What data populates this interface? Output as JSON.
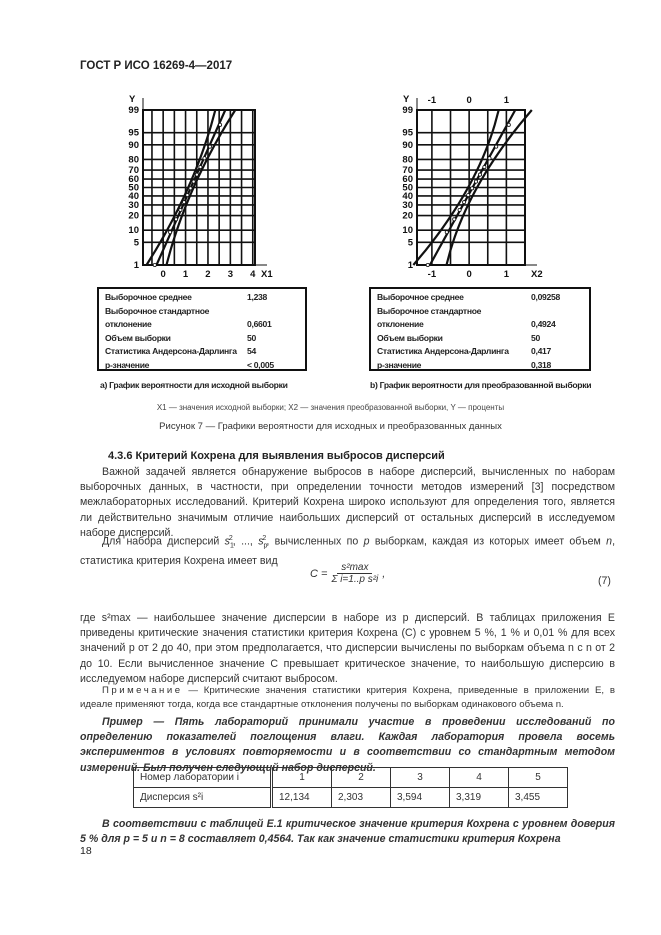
{
  "header": {
    "title": "ГОСТ Р ИСО 16269-4—2017"
  },
  "chart_data": [
    {
      "type": "line",
      "title": "a) График вероятности для исходной выборки",
      "xlabel": "X1",
      "ylabel": "Y",
      "x_ticks": [
        "0",
        "1",
        "2",
        "3",
        "4"
      ],
      "xlim": [
        -0.9,
        4.1
      ],
      "y_ticks": [
        "1",
        "5",
        "10",
        "20",
        "30",
        "40",
        "50",
        "60",
        "70",
        "80",
        "90",
        "95",
        "99"
      ],
      "y_scale": "normal-probability",
      "fit": {
        "mean": 1.238,
        "sd": 0.6601
      },
      "stats": [
        {
          "label": "Выборочное среднее",
          "value": "1,238"
        },
        {
          "label": "Выборочное стандартное",
          "value": ""
        },
        {
          "label": "отклонение",
          "value": "0,6601"
        },
        {
          "label": "Объем выборки",
          "value": "50"
        },
        {
          "label": "Статистика Андерсона-Дарлинга",
          "value": "54"
        },
        {
          "label": "p-значение",
          "value": "< 0,005"
        }
      ]
    },
    {
      "type": "line",
      "title": "b) График вероятности для преобразованной выборки",
      "xlabel": "X2",
      "ylabel": "Y",
      "x_ticks": [
        "-1",
        "0",
        "1"
      ],
      "top_x_ticks": [
        "-1",
        "0",
        "1"
      ],
      "xlim": [
        -1.4,
        1.5
      ],
      "y_ticks": [
        "1",
        "5",
        "10",
        "20",
        "30",
        "40",
        "50",
        "60",
        "70",
        "80",
        "90",
        "95",
        "99"
      ],
      "y_scale": "normal-probability",
      "fit": {
        "mean": 0.09258,
        "sd": 0.4924
      },
      "stats": [
        {
          "label": "Выборочное среднее",
          "value": "0,09258"
        },
        {
          "label": "Выборочное стандартное",
          "value": ""
        },
        {
          "label": "отклонение",
          "value": "0,4924"
        },
        {
          "label": "Объем выборки",
          "value": "50"
        },
        {
          "label": "Статистика Андерсона-Дарлинга",
          "value": "0,417"
        },
        {
          "label": "p-значение",
          "value": "0,318"
        }
      ]
    }
  ],
  "figure": {
    "legend": "X1 — значения исходной выборки; X2 — значения преобразованной выборки, Y — проценты",
    "caption": "Рисунок 7 — Графики вероятности для исходных и преобразованных данных"
  },
  "section": {
    "heading": "4.3.6 Критерий Кохрена для выявления выбросов дисперсий",
    "p1": "Важной задачей является обнаружение выбросов в наборе дисперсий, вычисленных по наборам выборочных данных, в частности, при определении точности методов измерений [3] посредством межлабораторных исследований. Критерий Кохрена широко используют для определения того, является ли действительно значимым отличие наибольших дисперсий от остальных дисперсий в исследуемом наборе дисперсий.",
    "p2a": "Для набора дисперсий ",
    "p2b": ", вычисленных по ",
    "p2c": " выборкам, каждая из которых имеет объем ",
    "p2d": ", статистика критерия Кохрена имеет вид",
    "formula_lhs": "C =",
    "formula_num": "s²max",
    "formula_den": "Σ i=1..p s²i",
    "formula_no": "(7)",
    "p3": "где s²max — наибольшее значение дисперсии в наборе из p дисперсий. В таблицах приложения Е приведены критические значения статистики критерия Кохрена (C) с уровнем 5 %, 1 % и 0,01 % для всех значений p от 2 до 40, при этом предполагается, что дисперсии вычислены по выборкам объема n с n от 2 до 10. Если вычисленное значение C превышает критическое значение, то наибольшую дисперсию в исследуемом наборе дисперсий считают выбросом.",
    "note_label": "Примечание",
    "note": " — Критические значения статистики критерия Кохрена, приведенные в приложении Е, в идеале применяют тогда, когда все стандартные отклонения получены по выборкам одинакового объема n.",
    "example": "Пример — Пять лабораторий принимали участие в проведении исследований по определению показателей поглощения влаги. Каждая лаборатория провела восемь экспериментов в условиях повторяемости и в соответствии со стандартным методом измерений. Был получен следующий набор дисперсий.",
    "table": {
      "row1_label": "Номер лаборатории i",
      "row1": [
        "1",
        "2",
        "3",
        "4",
        "5"
      ],
      "row2_label": "Дисперсия s²i",
      "row2": [
        "12,134",
        "2,303",
        "3,594",
        "3,319",
        "3,455"
      ]
    },
    "final": "В соответствии с таблицей Е.1 критическое значение критерия Кохрена с уровнем доверия 5 % для p = 5 и n = 8 составляет 0,4564. Так как значение статистики критерия Кохрена"
  },
  "footer": {
    "page": "18"
  }
}
